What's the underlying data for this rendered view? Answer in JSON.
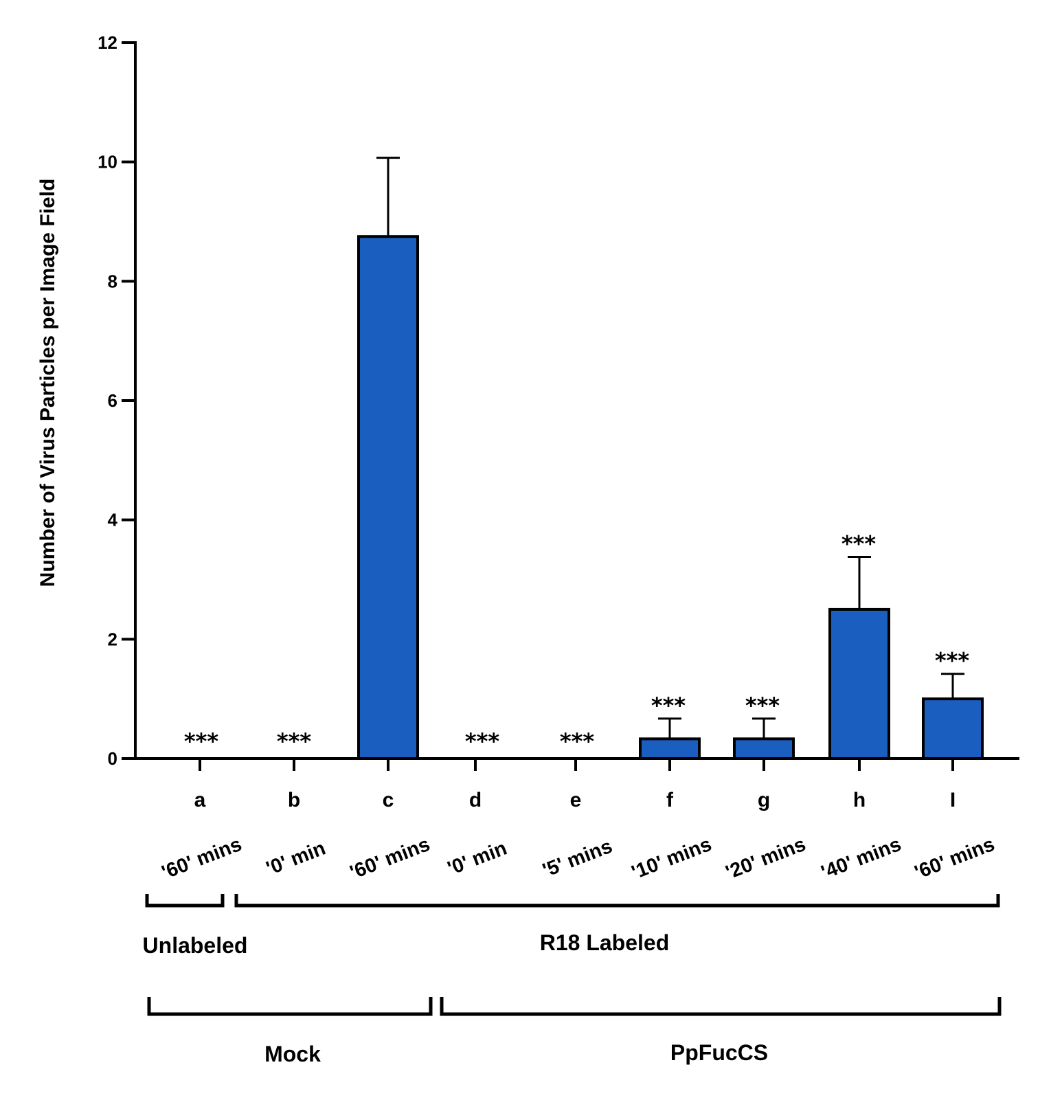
{
  "chart_data": {
    "type": "bar",
    "ylabel": "Number of Virus Particles per Image Field",
    "xlabel": "",
    "ylim": [
      0,
      12
    ],
    "yticks": [
      "0",
      "2",
      "4",
      "6",
      "8",
      "10",
      "12"
    ],
    "bar_color": "#1a5fbf",
    "categories": [
      "a",
      "b",
      "c",
      "d",
      "e",
      "f",
      "g",
      "h",
      "I"
    ],
    "time_labels": [
      "'60' mins",
      "'0' min",
      "'60' mins",
      "'0' min",
      "'5' mins",
      "'10' mins",
      "'20' mins",
      "'40' mins",
      "'60' mins"
    ],
    "values": [
      0,
      0,
      8.75,
      0,
      0,
      0.33,
      0.33,
      2.5,
      1.0
    ],
    "errors": [
      0,
      0,
      1.32,
      0,
      0,
      0.34,
      0.34,
      0.88,
      0.42
    ],
    "significance": [
      "***",
      "***",
      "",
      "***",
      "***",
      "***",
      "***",
      "***",
      "***"
    ],
    "brackets_row1": [
      {
        "label": "Unlabeled",
        "from": 0,
        "to": 0
      },
      {
        "label": "R18 Labeled",
        "from": 1,
        "to": 8
      }
    ],
    "brackets_row2": [
      {
        "label": "Mock",
        "from": 0,
        "to": 2
      },
      {
        "label": "PpFucCS",
        "from": 3,
        "to": 8
      }
    ]
  }
}
